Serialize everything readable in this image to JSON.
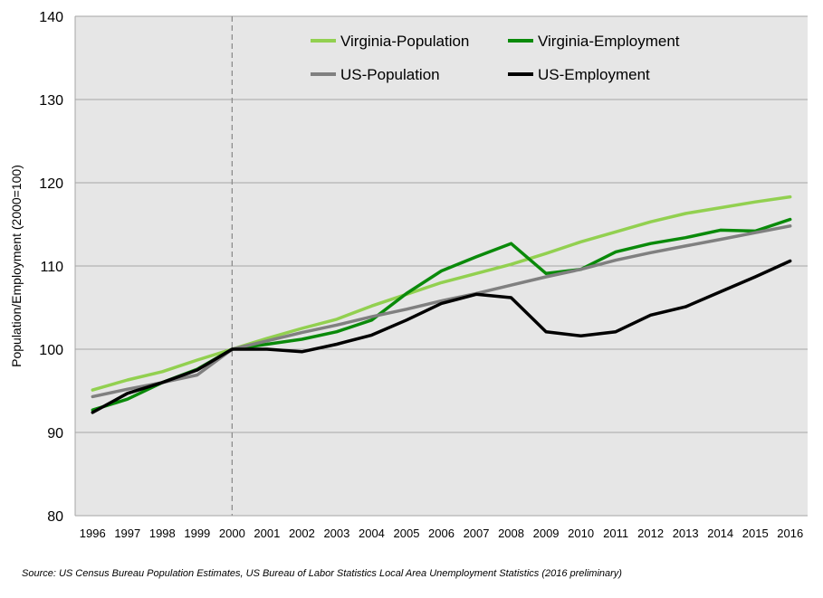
{
  "chart_data": {
    "type": "line",
    "title": "",
    "xlabel": "",
    "ylabel": "Population/Employment (2000=100)",
    "x": [
      1996,
      1997,
      1998,
      1999,
      2000,
      2001,
      2002,
      2003,
      2004,
      2005,
      2006,
      2007,
      2008,
      2009,
      2010,
      2011,
      2012,
      2013,
      2014,
      2015,
      2016
    ],
    "ylim": [
      80,
      140
    ],
    "yticks": [
      80,
      90,
      100,
      110,
      120,
      130,
      140
    ],
    "grid": true,
    "reference_line": {
      "x": 2000,
      "style": "dashed"
    },
    "legend_position": "top-right",
    "series": [
      {
        "name": "Virginia-Population",
        "color": "#92d050",
        "values": [
          95.1,
          96.3,
          97.3,
          98.7,
          100.0,
          101.3,
          102.5,
          103.6,
          105.2,
          106.6,
          108.0,
          109.1,
          110.2,
          111.5,
          112.9,
          114.1,
          115.3,
          116.3,
          117.0,
          117.7,
          118.3
        ]
      },
      {
        "name": "Virginia-Employment",
        "color": "#0a8a0a",
        "values": [
          92.7,
          94.0,
          96.0,
          97.6,
          100.0,
          100.6,
          101.2,
          102.1,
          103.5,
          106.7,
          109.4,
          111.1,
          112.7,
          109.1,
          109.6,
          111.7,
          112.7,
          113.4,
          114.3,
          114.2,
          115.6
        ]
      },
      {
        "name": "US-Population",
        "color": "#808080",
        "values": [
          94.3,
          95.2,
          96.0,
          96.9,
          100.0,
          101.0,
          102.0,
          102.9,
          103.9,
          104.8,
          105.8,
          106.7,
          107.7,
          108.7,
          109.6,
          110.7,
          111.6,
          112.4,
          113.2,
          114.0,
          114.8
        ]
      },
      {
        "name": "US-Employment",
        "color": "#000000",
        "values": [
          92.4,
          94.7,
          96.0,
          97.5,
          100.0,
          100.0,
          99.7,
          100.6,
          101.7,
          103.5,
          105.5,
          106.6,
          106.2,
          102.1,
          101.6,
          102.1,
          104.1,
          105.1,
          106.9,
          108.7,
          110.6
        ]
      }
    ]
  },
  "source_text": "Source: US Census Bureau Population Estimates, US Bureau of Labor Statistics Local Area Unemployment Statistics (2016 preliminary)"
}
